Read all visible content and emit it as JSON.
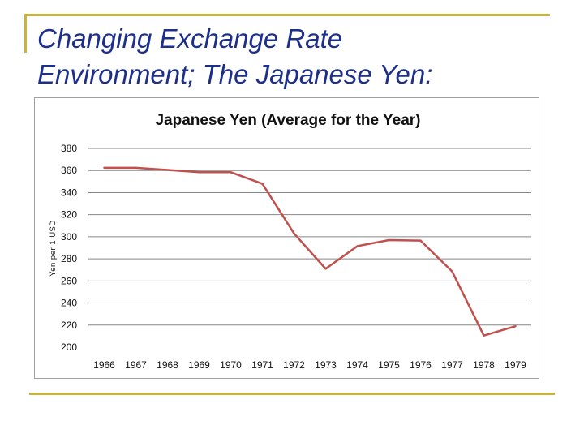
{
  "slide": {
    "title_line1": "Changing Exchange Rate",
    "title_line2": "Environment; The Japanese Yen:"
  },
  "colors": {
    "title_text": "#1c2f8a",
    "frame_accent": "#c8b43a",
    "series_line": "#c0504d",
    "gridline": "#868686"
  },
  "chart_data": {
    "type": "line",
    "title": "Japanese Yen (Average for the Year)",
    "xlabel": "",
    "ylabel": "Yen per 1 USD",
    "categories": [
      "1966",
      "1967",
      "1968",
      "1969",
      "1970",
      "1971",
      "1972",
      "1973",
      "1974",
      "1975",
      "1976",
      "1977",
      "1978",
      "1979"
    ],
    "series": [
      {
        "values": [
          362.5,
          362.5,
          360.5,
          358.5,
          358.5,
          348,
          303,
          271,
          291.5,
          297,
          296.5,
          268.5,
          210.5,
          219
        ]
      }
    ],
    "ylim": [
      200,
      380
    ],
    "yticks": [
      200,
      220,
      240,
      260,
      280,
      300,
      320,
      340,
      360,
      380
    ],
    "grid": true,
    "legend": "none"
  }
}
